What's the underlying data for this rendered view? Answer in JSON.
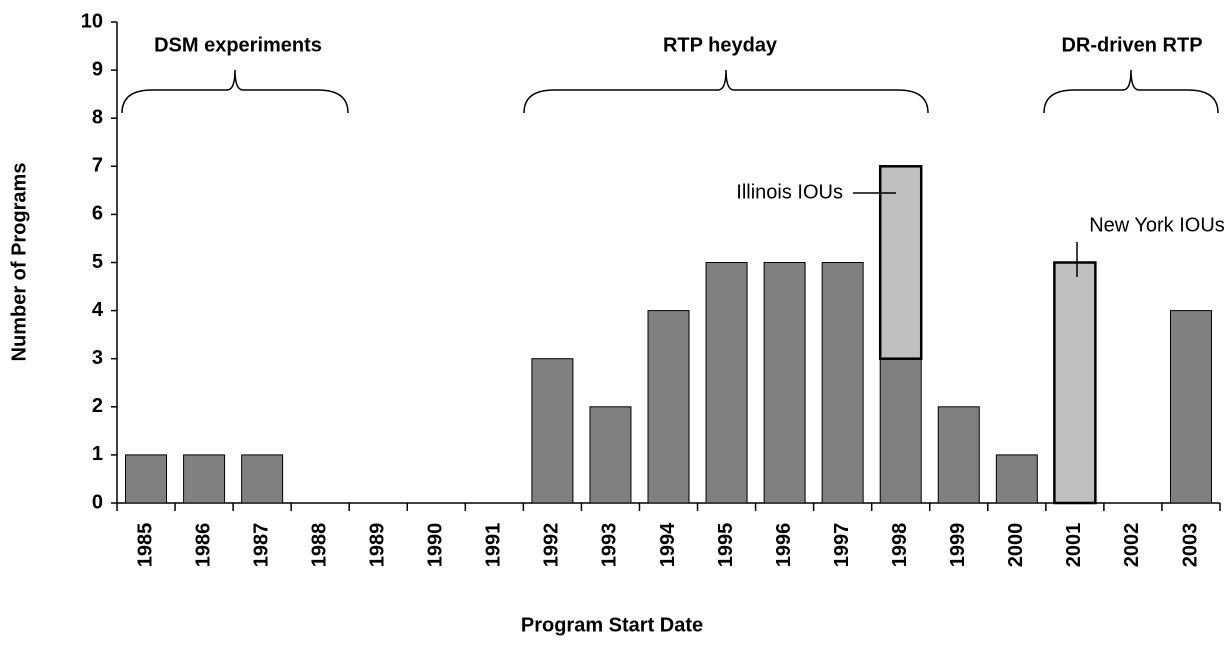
{
  "chart_data": {
    "type": "bar",
    "stacked": true,
    "categories": [
      "1985",
      "1986",
      "1987",
      "1988",
      "1989",
      "1990",
      "1991",
      "1992",
      "1993",
      "1994",
      "1995",
      "1996",
      "1997",
      "1998",
      "1999",
      "2000",
      "2001",
      "2002",
      "2003"
    ],
    "series": [
      {
        "color": "#808080",
        "values": [
          1,
          1,
          1,
          0,
          0,
          0,
          0,
          3,
          2,
          4,
          5,
          5,
          5,
          3,
          2,
          1,
          0,
          0,
          4
        ]
      },
      {
        "color": "#c0c0c0",
        "values": [
          0,
          0,
          0,
          0,
          0,
          0,
          0,
          0,
          0,
          0,
          0,
          0,
          0,
          4,
          0,
          0,
          5,
          0,
          0
        ]
      }
    ],
    "ylim": [
      0,
      10
    ],
    "yticks": [
      0,
      1,
      2,
      3,
      4,
      5,
      6,
      7,
      8,
      9,
      10
    ],
    "x_label": "Program Start Date",
    "y_label": "Number of Programs",
    "annotations": [
      "DSM experiments",
      "RTP heyday",
      "DR-driven RTP",
      "Illinois IOUs",
      "New York IOUs"
    ]
  }
}
